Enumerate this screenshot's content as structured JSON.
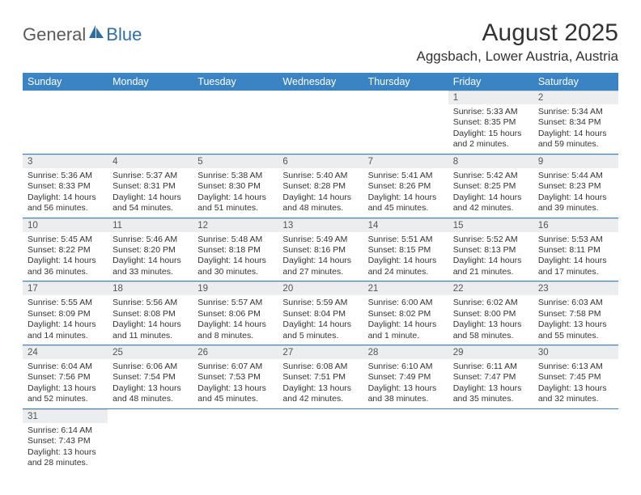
{
  "logo": {
    "part1": "General",
    "part2": "Blue"
  },
  "title": "August 2025",
  "location": "Aggsbach, Lower Austria, Austria",
  "colors": {
    "header_bg": "#3b84c4",
    "header_fg": "#ffffff",
    "daynum_bg": "#ecedef",
    "row_border": "#3b84c4",
    "logo_gray": "#5a5a5a",
    "logo_blue": "#2f6fa8"
  },
  "daysOfWeek": [
    "Sunday",
    "Monday",
    "Tuesday",
    "Wednesday",
    "Thursday",
    "Friday",
    "Saturday"
  ],
  "weeks": [
    [
      null,
      null,
      null,
      null,
      null,
      {
        "n": "1",
        "sunrise": "Sunrise: 5:33 AM",
        "sunset": "Sunset: 8:35 PM",
        "daylight": "Daylight: 15 hours and 2 minutes."
      },
      {
        "n": "2",
        "sunrise": "Sunrise: 5:34 AM",
        "sunset": "Sunset: 8:34 PM",
        "daylight": "Daylight: 14 hours and 59 minutes."
      }
    ],
    [
      {
        "n": "3",
        "sunrise": "Sunrise: 5:36 AM",
        "sunset": "Sunset: 8:33 PM",
        "daylight": "Daylight: 14 hours and 56 minutes."
      },
      {
        "n": "4",
        "sunrise": "Sunrise: 5:37 AM",
        "sunset": "Sunset: 8:31 PM",
        "daylight": "Daylight: 14 hours and 54 minutes."
      },
      {
        "n": "5",
        "sunrise": "Sunrise: 5:38 AM",
        "sunset": "Sunset: 8:30 PM",
        "daylight": "Daylight: 14 hours and 51 minutes."
      },
      {
        "n": "6",
        "sunrise": "Sunrise: 5:40 AM",
        "sunset": "Sunset: 8:28 PM",
        "daylight": "Daylight: 14 hours and 48 minutes."
      },
      {
        "n": "7",
        "sunrise": "Sunrise: 5:41 AM",
        "sunset": "Sunset: 8:26 PM",
        "daylight": "Daylight: 14 hours and 45 minutes."
      },
      {
        "n": "8",
        "sunrise": "Sunrise: 5:42 AM",
        "sunset": "Sunset: 8:25 PM",
        "daylight": "Daylight: 14 hours and 42 minutes."
      },
      {
        "n": "9",
        "sunrise": "Sunrise: 5:44 AM",
        "sunset": "Sunset: 8:23 PM",
        "daylight": "Daylight: 14 hours and 39 minutes."
      }
    ],
    [
      {
        "n": "10",
        "sunrise": "Sunrise: 5:45 AM",
        "sunset": "Sunset: 8:22 PM",
        "daylight": "Daylight: 14 hours and 36 minutes."
      },
      {
        "n": "11",
        "sunrise": "Sunrise: 5:46 AM",
        "sunset": "Sunset: 8:20 PM",
        "daylight": "Daylight: 14 hours and 33 minutes."
      },
      {
        "n": "12",
        "sunrise": "Sunrise: 5:48 AM",
        "sunset": "Sunset: 8:18 PM",
        "daylight": "Daylight: 14 hours and 30 minutes."
      },
      {
        "n": "13",
        "sunrise": "Sunrise: 5:49 AM",
        "sunset": "Sunset: 8:16 PM",
        "daylight": "Daylight: 14 hours and 27 minutes."
      },
      {
        "n": "14",
        "sunrise": "Sunrise: 5:51 AM",
        "sunset": "Sunset: 8:15 PM",
        "daylight": "Daylight: 14 hours and 24 minutes."
      },
      {
        "n": "15",
        "sunrise": "Sunrise: 5:52 AM",
        "sunset": "Sunset: 8:13 PM",
        "daylight": "Daylight: 14 hours and 21 minutes."
      },
      {
        "n": "16",
        "sunrise": "Sunrise: 5:53 AM",
        "sunset": "Sunset: 8:11 PM",
        "daylight": "Daylight: 14 hours and 17 minutes."
      }
    ],
    [
      {
        "n": "17",
        "sunrise": "Sunrise: 5:55 AM",
        "sunset": "Sunset: 8:09 PM",
        "daylight": "Daylight: 14 hours and 14 minutes."
      },
      {
        "n": "18",
        "sunrise": "Sunrise: 5:56 AM",
        "sunset": "Sunset: 8:08 PM",
        "daylight": "Daylight: 14 hours and 11 minutes."
      },
      {
        "n": "19",
        "sunrise": "Sunrise: 5:57 AM",
        "sunset": "Sunset: 8:06 PM",
        "daylight": "Daylight: 14 hours and 8 minutes."
      },
      {
        "n": "20",
        "sunrise": "Sunrise: 5:59 AM",
        "sunset": "Sunset: 8:04 PM",
        "daylight": "Daylight: 14 hours and 5 minutes."
      },
      {
        "n": "21",
        "sunrise": "Sunrise: 6:00 AM",
        "sunset": "Sunset: 8:02 PM",
        "daylight": "Daylight: 14 hours and 1 minute."
      },
      {
        "n": "22",
        "sunrise": "Sunrise: 6:02 AM",
        "sunset": "Sunset: 8:00 PM",
        "daylight": "Daylight: 13 hours and 58 minutes."
      },
      {
        "n": "23",
        "sunrise": "Sunrise: 6:03 AM",
        "sunset": "Sunset: 7:58 PM",
        "daylight": "Daylight: 13 hours and 55 minutes."
      }
    ],
    [
      {
        "n": "24",
        "sunrise": "Sunrise: 6:04 AM",
        "sunset": "Sunset: 7:56 PM",
        "daylight": "Daylight: 13 hours and 52 minutes."
      },
      {
        "n": "25",
        "sunrise": "Sunrise: 6:06 AM",
        "sunset": "Sunset: 7:54 PM",
        "daylight": "Daylight: 13 hours and 48 minutes."
      },
      {
        "n": "26",
        "sunrise": "Sunrise: 6:07 AM",
        "sunset": "Sunset: 7:53 PM",
        "daylight": "Daylight: 13 hours and 45 minutes."
      },
      {
        "n": "27",
        "sunrise": "Sunrise: 6:08 AM",
        "sunset": "Sunset: 7:51 PM",
        "daylight": "Daylight: 13 hours and 42 minutes."
      },
      {
        "n": "28",
        "sunrise": "Sunrise: 6:10 AM",
        "sunset": "Sunset: 7:49 PM",
        "daylight": "Daylight: 13 hours and 38 minutes."
      },
      {
        "n": "29",
        "sunrise": "Sunrise: 6:11 AM",
        "sunset": "Sunset: 7:47 PM",
        "daylight": "Daylight: 13 hours and 35 minutes."
      },
      {
        "n": "30",
        "sunrise": "Sunrise: 6:13 AM",
        "sunset": "Sunset: 7:45 PM",
        "daylight": "Daylight: 13 hours and 32 minutes."
      }
    ],
    [
      {
        "n": "31",
        "sunrise": "Sunrise: 6:14 AM",
        "sunset": "Sunset: 7:43 PM",
        "daylight": "Daylight: 13 hours and 28 minutes."
      },
      null,
      null,
      null,
      null,
      null,
      null
    ]
  ]
}
